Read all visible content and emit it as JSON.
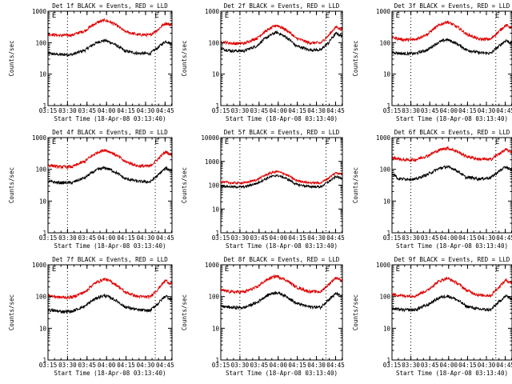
{
  "figure": {
    "background": "#ffffff"
  },
  "colors": {
    "events": "#000000",
    "lld": "#e00000",
    "axis": "#000000"
  },
  "chart_data": [
    {
      "type": "line",
      "title": "Det 1f BLACK = Events, RED = LLD",
      "xlabel": "Start Time (18-Apr-08 03:13:40)",
      "ylabel": "Counts/sec",
      "yscale": "log",
      "ylim": [
        1,
        1000
      ],
      "xlim_min": [
        1.33,
        96.67
      ],
      "xticks_min": [
        1.33,
        16.33,
        31.33,
        46.33,
        61.33,
        76.33,
        91.33
      ],
      "xtick_labels": [
        "03:15",
        "03:30",
        "03:45",
        "04:00",
        "04:15",
        "04:30",
        "04:45"
      ],
      "yticks": [
        1,
        10,
        100,
        1000
      ],
      "ytick_labels": [
        "1",
        "10",
        "100",
        "1000"
      ],
      "dotted_lines_min": [
        16.3,
        83.8
      ],
      "markers": [
        {
          "label": "E",
          "x_min": 6.0
        },
        {
          "label": "E",
          "x_min": 85.0
        }
      ],
      "series": [
        {
          "name": "Events",
          "color": "black",
          "x_min": [
            0,
            10,
            20,
            30,
            40,
            45,
            50,
            60,
            70,
            80,
            86,
            92,
            95
          ],
          "values": [
            46,
            42,
            42,
            58,
            105,
            118,
            100,
            55,
            46,
            45,
            70,
            112,
            96
          ]
        },
        {
          "name": "LLD",
          "color": "red",
          "x_min": [
            0,
            10,
            20,
            30,
            40,
            45,
            50,
            60,
            70,
            80,
            86,
            92,
            95
          ],
          "values": [
            190,
            170,
            175,
            240,
            450,
            520,
            440,
            230,
            180,
            175,
            260,
            420,
            370
          ]
        }
      ]
    },
    {
      "type": "line",
      "title": "Det 2f BLACK = Events, RED = LLD",
      "xlabel": "Start Time (18-Apr-08 03:13:40)",
      "ylabel": "Counts/sec",
      "yscale": "log",
      "ylim": [
        1,
        1000
      ],
      "xlim_min": [
        1.33,
        96.67
      ],
      "xticks_min": [
        1.33,
        16.33,
        31.33,
        46.33,
        61.33,
        76.33,
        91.33
      ],
      "xtick_labels": [
        "03:15",
        "03:30",
        "03:45",
        "04:00",
        "04:15",
        "04:30",
        "04:45"
      ],
      "yticks": [
        1,
        10,
        100,
        1000
      ],
      "ytick_labels": [
        "1",
        "10",
        "100",
        "1000"
      ],
      "dotted_lines_min": [
        16.3,
        83.8
      ],
      "markers": [
        {
          "label": "E",
          "x_min": 6.0
        },
        {
          "label": "E",
          "x_min": 85.0
        }
      ],
      "series": [
        {
          "name": "Events",
          "color": "black",
          "x_min": [
            0,
            10,
            20,
            30,
            40,
            45,
            50,
            60,
            70,
            80,
            86,
            92,
            95
          ],
          "values": [
            65,
            55,
            55,
            80,
            170,
            215,
            170,
            80,
            60,
            58,
            100,
            200,
            170
          ]
        },
        {
          "name": "LLD",
          "color": "red",
          "x_min": [
            0,
            10,
            20,
            30,
            40,
            45,
            50,
            60,
            70,
            80,
            86,
            92,
            95
          ],
          "values": [
            110,
            95,
            95,
            140,
            280,
            360,
            290,
            140,
            100,
            98,
            170,
            320,
            270
          ]
        }
      ]
    },
    {
      "type": "line",
      "title": "Det 3f BLACK = Events, RED = LLD",
      "xlabel": "Start Time (18-Apr-08 03:13:40)",
      "ylabel": "Counts/sec",
      "yscale": "log",
      "ylim": [
        1,
        1000
      ],
      "xlim_min": [
        1.33,
        96.67
      ],
      "xticks_min": [
        1.33,
        16.33,
        31.33,
        46.33,
        61.33,
        76.33,
        91.33
      ],
      "xtick_labels": [
        "03:15",
        "03:30",
        "03:45",
        "04:00",
        "04:15",
        "04:30",
        "04:45"
      ],
      "yticks": [
        1,
        10,
        100,
        1000
      ],
      "ytick_labels": [
        "1",
        "10",
        "100",
        "1000"
      ],
      "dotted_lines_min": [
        16.3,
        83.8
      ],
      "markers": [
        {
          "label": "E",
          "x_min": 6.0
        },
        {
          "label": "E",
          "x_min": 85.0
        }
      ],
      "series": [
        {
          "name": "Events",
          "color": "black",
          "x_min": [
            0,
            10,
            20,
            30,
            40,
            45,
            50,
            60,
            70,
            80,
            86,
            92,
            95
          ],
          "values": [
            50,
            45,
            45,
            60,
            110,
            125,
            105,
            60,
            48,
            46,
            75,
            118,
            100
          ]
        },
        {
          "name": "LLD",
          "color": "red",
          "x_min": [
            0,
            10,
            20,
            30,
            40,
            45,
            50,
            60,
            70,
            80,
            86,
            92,
            95
          ],
          "values": [
            150,
            125,
            125,
            190,
            380,
            460,
            370,
            190,
            130,
            128,
            220,
            360,
            310
          ]
        }
      ]
    },
    {
      "type": "line",
      "title": "Det 4f BLACK = Events, RED = LLD",
      "xlabel": "Start Time (18-Apr-08 03:13:40)",
      "ylabel": "Counts/sec",
      "yscale": "log",
      "ylim": [
        1,
        1000
      ],
      "xlim_min": [
        1.33,
        96.67
      ],
      "xticks_min": [
        1.33,
        16.33,
        31.33,
        46.33,
        61.33,
        76.33,
        91.33
      ],
      "xtick_labels": [
        "03:15",
        "03:30",
        "03:45",
        "04:00",
        "04:15",
        "04:30",
        "04:45"
      ],
      "yticks": [
        1,
        10,
        100,
        1000
      ],
      "ytick_labels": [
        "1",
        "10",
        "100",
        "1000"
      ],
      "dotted_lines_min": [
        16.3,
        83.8
      ],
      "markers": [
        {
          "label": "E",
          "x_min": 6.0
        },
        {
          "label": "E",
          "x_min": 85.0
        }
      ],
      "series": [
        {
          "name": "Events",
          "color": "black",
          "x_min": [
            0,
            10,
            20,
            30,
            40,
            45,
            50,
            60,
            70,
            80,
            86,
            92,
            95
          ],
          "values": [
            42,
            38,
            38,
            55,
            100,
            112,
            95,
            52,
            42,
            40,
            65,
            110,
            92
          ]
        },
        {
          "name": "LLD",
          "color": "red",
          "x_min": [
            0,
            10,
            20,
            30,
            40,
            45,
            50,
            60,
            70,
            80,
            86,
            92,
            95
          ],
          "values": [
            140,
            120,
            120,
            180,
            350,
            410,
            340,
            180,
            128,
            125,
            210,
            360,
            300
          ]
        }
      ]
    },
    {
      "type": "line",
      "title": "Det 5f BLACK = Events, RED = LLD",
      "xlabel": "Start Time (18-Apr-08 03:13:40)",
      "ylabel": "Counts/sec",
      "yscale": "log",
      "ylim": [
        1,
        10000
      ],
      "xlim_min": [
        1.33,
        96.67
      ],
      "xticks_min": [
        1.33,
        16.33,
        31.33,
        46.33,
        61.33,
        76.33,
        91.33
      ],
      "xtick_labels": [
        "03:15",
        "03:30",
        "03:45",
        "04:00",
        "04:15",
        "04:30",
        "04:45"
      ],
      "yticks": [
        1,
        10,
        100,
        1000,
        10000
      ],
      "ytick_labels": [
        "1",
        "10",
        "100",
        "1000",
        "10000"
      ],
      "dotted_lines_min": [
        16.3,
        83.8
      ],
      "markers": [
        {
          "label": "E",
          "x_min": 6.0
        },
        {
          "label": "E",
          "x_min": 85.0
        }
      ],
      "series": [
        {
          "name": "Events",
          "color": "black",
          "x_min": [
            0,
            10,
            20,
            30,
            40,
            45,
            50,
            60,
            70,
            80,
            86,
            92,
            95
          ],
          "values": [
            95,
            85,
            85,
            120,
            220,
            260,
            220,
            110,
            88,
            86,
            140,
            230,
            200
          ]
        },
        {
          "name": "LLD",
          "color": "red",
          "x_min": [
            0,
            10,
            20,
            30,
            40,
            45,
            50,
            60,
            70,
            80,
            86,
            92,
            95
          ],
          "values": [
            140,
            125,
            125,
            170,
            320,
            380,
            320,
            160,
            128,
            125,
            200,
            340,
            300
          ]
        }
      ]
    },
    {
      "type": "line",
      "title": "Det 6f BLACK = Events, RED = LLD",
      "xlabel": "Start Time (18-Apr-08 03:13:40)",
      "ylabel": "Counts/sec",
      "yscale": "log",
      "ylim": [
        1,
        1000
      ],
      "xlim_min": [
        1.33,
        96.67
      ],
      "xticks_min": [
        1.33,
        16.33,
        31.33,
        46.33,
        61.33,
        76.33,
        91.33
      ],
      "xtick_labels": [
        "03:15",
        "03:30",
        "03:45",
        "04:00",
        "04:15",
        "04:30",
        "04:45"
      ],
      "yticks": [
        1,
        10,
        100,
        1000
      ],
      "ytick_labels": [
        "1",
        "10",
        "100",
        "1000"
      ],
      "dotted_lines_min": [
        16.3,
        83.8
      ],
      "markers": [
        {
          "label": "E",
          "x_min": 6.0
        },
        {
          "label": "E",
          "x_min": 85.0
        }
      ],
      "series": [
        {
          "name": "Events",
          "color": "black",
          "x_min": [
            0,
            3,
            6,
            15,
            20,
            30,
            40,
            45,
            50,
            60,
            65,
            70,
            75,
            80,
            86,
            92,
            95
          ],
          "values": [
            65,
            72,
            50,
            50,
            48,
            70,
            110,
            120,
            105,
            55,
            55,
            50,
            52,
            55,
            85,
            120,
            100
          ]
        },
        {
          "name": "LLD",
          "color": "red",
          "x_min": [
            0,
            10,
            20,
            30,
            40,
            45,
            50,
            60,
            70,
            80,
            86,
            92,
            95
          ],
          "values": [
            240,
            200,
            200,
            270,
            420,
            470,
            410,
            260,
            210,
            205,
            300,
            420,
            360
          ]
        }
      ]
    },
    {
      "type": "line",
      "title": "Det 7f BLACK = Events, RED = LLD",
      "xlabel": "Start Time (18-Apr-08 03:13:40)",
      "ylabel": "Counts/sec",
      "yscale": "log",
      "ylim": [
        1,
        1000
      ],
      "xlim_min": [
        1.33,
        96.67
      ],
      "xticks_min": [
        1.33,
        16.33,
        31.33,
        46.33,
        61.33,
        76.33,
        91.33
      ],
      "xtick_labels": [
        "03:15",
        "03:30",
        "03:45",
        "04:00",
        "04:15",
        "04:30",
        "04:45"
      ],
      "yticks": [
        1,
        10,
        100,
        1000
      ],
      "ytick_labels": [
        "1",
        "10",
        "100",
        "1000"
      ],
      "dotted_lines_min": [
        16.3,
        83.8
      ],
      "markers": [
        {
          "label": "E",
          "x_min": 6.0
        },
        {
          "label": "E",
          "x_min": 85.0
        }
      ],
      "series": [
        {
          "name": "Events",
          "color": "black",
          "x_min": [
            0,
            10,
            20,
            30,
            40,
            45,
            50,
            60,
            70,
            80,
            86,
            92,
            95
          ],
          "values": [
            38,
            34,
            34,
            50,
            95,
            108,
            90,
            48,
            38,
            36,
            60,
            105,
            85
          ]
        },
        {
          "name": "LLD",
          "color": "red",
          "x_min": [
            0,
            10,
            20,
            30,
            40,
            45,
            50,
            60,
            70,
            80,
            86,
            92,
            95
          ],
          "values": [
            110,
            95,
            95,
            140,
            300,
            360,
            290,
            140,
            100,
            98,
            170,
            320,
            260
          ]
        }
      ]
    },
    {
      "type": "line",
      "title": "Det 8f BLACK = Events, RED = LLD",
      "xlabel": "Start Time (18-Apr-08 03:13:40)",
      "ylabel": "Counts/sec",
      "yscale": "log",
      "ylim": [
        1,
        1000
      ],
      "xlim_min": [
        1.33,
        96.67
      ],
      "xticks_min": [
        1.33,
        16.33,
        31.33,
        46.33,
        61.33,
        76.33,
        91.33
      ],
      "xtick_labels": [
        "03:15",
        "03:30",
        "03:45",
        "04:00",
        "04:15",
        "04:30",
        "04:45"
      ],
      "yticks": [
        1,
        10,
        100,
        1000
      ],
      "ytick_labels": [
        "1",
        "10",
        "100",
        "1000"
      ],
      "dotted_lines_min": [
        16.3,
        83.8
      ],
      "markers": [
        {
          "label": "E",
          "x_min": 6.0
        },
        {
          "label": "E",
          "x_min": 85.0
        }
      ],
      "series": [
        {
          "name": "Events",
          "color": "black",
          "x_min": [
            0,
            10,
            20,
            30,
            40,
            45,
            50,
            60,
            70,
            80,
            86,
            92,
            95
          ],
          "values": [
            50,
            45,
            45,
            65,
            120,
            135,
            115,
            62,
            48,
            46,
            80,
            125,
            105
          ]
        },
        {
          "name": "LLD",
          "color": "red",
          "x_min": [
            0,
            10,
            20,
            30,
            40,
            45,
            50,
            60,
            70,
            80,
            86,
            92,
            95
          ],
          "values": [
            160,
            140,
            140,
            200,
            380,
            440,
            370,
            200,
            145,
            142,
            240,
            400,
            330
          ]
        }
      ]
    },
    {
      "type": "line",
      "title": "Det 9f BLACK = Events, RED = LLD",
      "xlabel": "Start Time (18-Apr-08 03:13:40)",
      "ylabel": "Counts/sec",
      "yscale": "log",
      "ylim": [
        1,
        1000
      ],
      "xlim_min": [
        1.33,
        96.67
      ],
      "xticks_min": [
        1.33,
        16.33,
        31.33,
        46.33,
        61.33,
        76.33,
        91.33
      ],
      "xtick_labels": [
        "03:15",
        "03:30",
        "03:45",
        "04:00",
        "04:15",
        "04:30",
        "04:45"
      ],
      "yticks": [
        1,
        10,
        100,
        1000
      ],
      "ytick_labels": [
        "1",
        "10",
        "100",
        "1000"
      ],
      "dotted_lines_min": [
        16.3,
        83.8
      ],
      "markers": [
        {
          "label": "E",
          "x_min": 6.0
        },
        {
          "label": "E",
          "x_min": 85.0
        }
      ],
      "series": [
        {
          "name": "Events",
          "color": "black",
          "x_min": [
            0,
            10,
            20,
            30,
            40,
            45,
            50,
            60,
            70,
            80,
            86,
            92,
            95
          ],
          "values": [
            42,
            38,
            38,
            55,
            95,
            105,
            90,
            50,
            40,
            38,
            65,
            105,
            88
          ]
        },
        {
          "name": "LLD",
          "color": "red",
          "x_min": [
            0,
            10,
            20,
            30,
            40,
            45,
            50,
            60,
            70,
            80,
            86,
            92,
            95
          ],
          "values": [
            120,
            105,
            105,
            160,
            320,
            380,
            310,
            160,
            110,
            108,
            190,
            330,
            280
          ]
        }
      ]
    }
  ]
}
